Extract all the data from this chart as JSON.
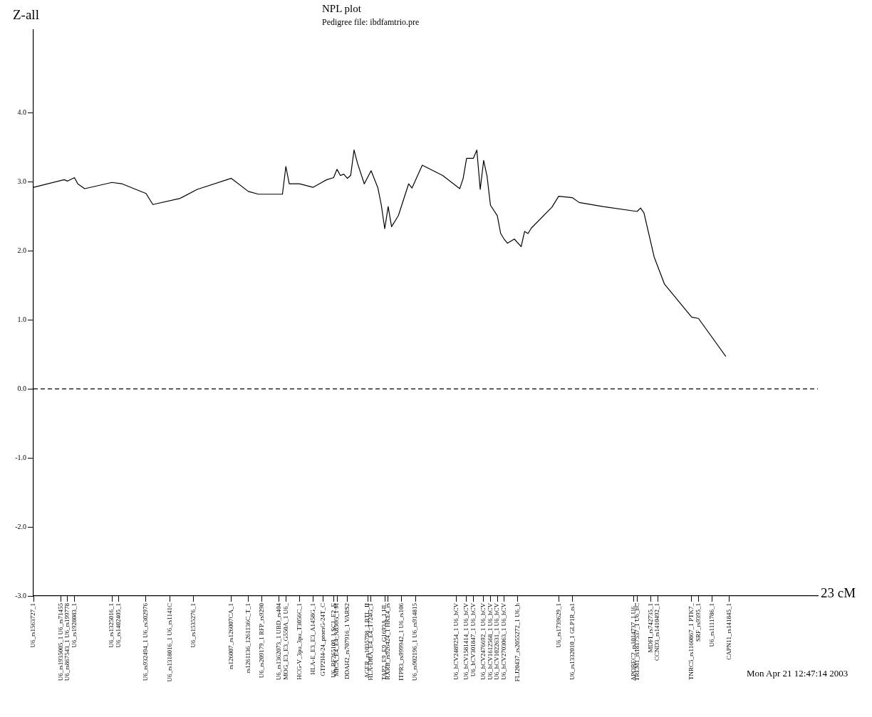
{
  "chart_data": {
    "type": "line",
    "title": "NPL plot",
    "subtitle": "Pedigree file: ibdfamtrio.pre",
    "ylabel": "Z-all",
    "xlabel": "23 cM",
    "annotations": [
      "Mon Apr 21 12:47:14 2003"
    ],
    "categories": [
      "U6_rs1563727_1",
      null,
      null,
      null,
      null,
      null,
      null,
      null,
      "U6_rs1935005_1 U6_rs71455",
      null,
      "U6_rs867543_1 U6_rs199778",
      null,
      "U6_rs1928083_1",
      null,
      null,
      null,
      null,
      null,
      null,
      null,
      null,
      null,
      null,
      "U6_rs1325016_1",
      null,
      "U6_rs1402405_1",
      null,
      null,
      null,
      null,
      null,
      null,
      null,
      "U6_rs932494_1 U6_rs302976",
      null,
      null,
      null,
      null,
      null,
      null,
      "U6_rs1318016_1 U6_rs1141C",
      null,
      null,
      null,
      null,
      null,
      null,
      "U6_rs1535276_1",
      null,
      null,
      null,
      null,
      null,
      null,
      null,
      null,
      null,
      null,
      "rs126007_rs126007CA_1",
      null,
      null,
      null,
      null,
      "rs1261136_1261136C_T_1",
      null,
      null,
      null,
      "U6_rs209179_1 RFP_rs9290",
      null,
      null,
      null,
      null,
      "U6_rs1362073_1 UBD_rs404",
      null,
      "MOG_E3_E3_G550A_1 U6_",
      null,
      null,
      null,
      "HCG-V_3pu_3pu_T3056C_1",
      null,
      null,
      null,
      "HLA-E_E3_E3_A1458G_1",
      null,
      null,
      "GTP2H4-24_promG-24T_C",
      null,
      null,
      "U6_BF265109_1 SC1_E2_E",
      "MICA_E4_E4_A856G_1 M",
      null,
      null,
      "DDAH2_rs707916_1 VARS2",
      null,
      null,
      null,
      null,
      null,
      "AGER_rs1035798_1 BTL_II",
      "HLA-DRA_E4_E4_T724G_1",
      null,
      null,
      null,
      "TAP2_E9_E9_G1693A_1 HL",
      "RXRB_rs926424_1 HKE4_rs",
      null,
      null,
      null,
      "ITPR3_rs999942_1 U6_rs106",
      null,
      null,
      null,
      "U6_rs902196_1 U6_rs914815",
      null,
      null,
      null,
      null,
      null,
      null,
      null,
      null,
      null,
      null,
      null,
      "U6_hCV2489254_1 U6_hCV",
      null,
      null,
      "U6_hCV1581414_1 U6_hCV",
      null,
      "U6_hCV301847_1 U6_hCV",
      null,
      null,
      "U6_hCV2476692_1 U6_hCV",
      null,
      "U6_hCV1612568_1 U6_hCV",
      null,
      "U6_hCV1022631_1 U6_hCV",
      null,
      "U6_hCV2703063_1 U6_hCV",
      null,
      null,
      null,
      "FLJ20437_rs2055272_1 U6_h",
      null,
      null,
      null,
      null,
      null,
      null,
      null,
      null,
      null,
      null,
      null,
      "U6_rs1739629_1",
      null,
      null,
      null,
      "U6_rs1332010_1 GLP1R_rs1",
      null,
      null,
      null,
      null,
      null,
      null,
      null,
      null,
      null,
      null,
      null,
      null,
      null,
      null,
      null,
      null,
      null,
      "APOBEC2_rs1014737_1 U6_",
      "TREM1_rs1817537_1 U6_hC",
      null,
      null,
      null,
      "MDFI_rs742735_1",
      null,
      "CCND3_rs1410492_1",
      null,
      null,
      null,
      null,
      null,
      null,
      null,
      null,
      null,
      "TNRC5_rs1160867_1 PTK7_",
      null,
      "SRF_rs9395_1",
      null,
      null,
      null,
      "U6_rs1111786_1",
      null,
      null,
      null,
      null,
      "CAPN11_rs141845_1",
      null,
      null,
      null,
      null,
      null,
      null,
      null,
      null,
      null,
      null,
      null,
      null,
      null,
      null,
      null,
      null,
      null,
      null,
      null,
      null,
      null,
      null,
      null,
      null,
      null,
      null
    ],
    "series": [
      {
        "color": "#000000",
        "values": [
          2.92,
          null,
          null,
          null,
          null,
          null,
          null,
          null,
          null,
          3.03,
          3.01,
          null,
          3.06,
          2.97,
          null,
          2.9,
          null,
          null,
          null,
          null,
          null,
          null,
          null,
          2.99,
          null,
          null,
          2.97,
          null,
          null,
          null,
          null,
          null,
          null,
          2.83,
          null,
          2.67,
          null,
          null,
          null,
          null,
          null,
          null,
          null,
          2.76,
          null,
          null,
          null,
          null,
          2.89,
          null,
          null,
          null,
          null,
          null,
          null,
          null,
          null,
          null,
          3.05,
          null,
          null,
          null,
          null,
          2.86,
          null,
          null,
          2.82,
          null,
          null,
          null,
          null,
          null,
          null,
          2.82,
          3.22,
          2.97,
          null,
          null,
          2.97,
          null,
          null,
          null,
          2.92,
          null,
          null,
          null,
          3.03,
          null,
          3.06,
          3.18,
          3.09,
          3.11,
          3.05,
          3.09,
          3.46,
          3.27,
          null,
          2.97,
          null,
          3.16,
          null,
          2.91,
          2.66,
          2.32,
          2.64,
          2.35,
          null,
          2.51,
          null,
          null,
          2.97,
          2.91,
          null,
          null,
          3.24,
          null,
          null,
          null,
          null,
          null,
          3.09,
          null,
          null,
          null,
          null,
          2.9,
          3.05,
          3.34,
          null,
          3.34,
          3.46,
          2.89,
          3.31,
          3.08,
          2.66,
          null,
          2.51,
          2.25,
          2.17,
          2.11,
          null,
          2.17,
          null,
          2.06,
          2.28,
          2.25,
          2.33,
          null,
          null,
          null,
          null,
          null,
          2.63,
          null,
          2.79,
          null,
          null,
          null,
          2.77,
          null,
          2.7,
          null,
          null,
          null,
          null,
          null,
          null,
          2.64,
          null,
          null,
          null,
          null,
          null,
          null,
          null,
          null,
          null,
          2.57,
          2.62,
          2.55,
          null,
          null,
          1.91,
          null,
          null,
          1.52,
          null,
          null,
          null,
          null,
          null,
          null,
          null,
          1.04,
          null,
          1.02,
          null,
          null,
          null,
          null,
          null,
          null,
          null,
          0.47,
          null,
          null,
          null,
          null,
          null,
          null,
          null,
          null,
          null,
          null,
          null,
          null,
          null,
          null,
          null,
          null,
          null,
          null,
          null,
          null,
          null,
          null,
          null,
          null,
          null,
          null,
          null
        ]
      }
    ],
    "ylim": [
      -3,
      5.2
    ],
    "yticks": [
      {
        "value": -3,
        "label": "-3.0"
      },
      {
        "value": -2,
        "label": "-2.0"
      },
      {
        "value": -1,
        "label": "-1.0"
      },
      {
        "value": 0,
        "label": "0.0"
      },
      {
        "value": 1,
        "label": "1.0"
      },
      {
        "value": 2,
        "label": "2.0"
      },
      {
        "value": 3,
        "label": "3.0"
      },
      {
        "value": 4,
        "label": "4.0"
      }
    ],
    "ref_lines": [
      {
        "axis": "y",
        "value": 0,
        "color": "#000000",
        "line_style": "dashed"
      }
    ],
    "grid": false,
    "legend": false,
    "marker": "none",
    "line_style": "solid"
  }
}
